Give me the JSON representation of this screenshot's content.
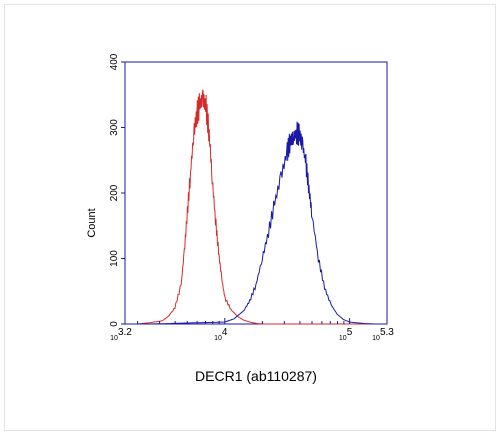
{
  "chart_data": {
    "type": "line",
    "title": "",
    "xlabel": "DECR1 (ab110287)",
    "ylabel": "Count",
    "x_scale": "log10",
    "xlim": [
      1585,
      199526
    ],
    "ylim": [
      0,
      400
    ],
    "grid": false,
    "y_ticks": [
      0,
      100,
      200,
      300,
      400
    ],
    "y_tick_labels": [
      "0",
      "100",
      "200",
      "300",
      "400"
    ],
    "x_tick_labels": [
      {
        "value": 1585,
        "base": "10",
        "exp": "3.2"
      },
      {
        "value": 10000,
        "base": "10",
        "exp": "4"
      },
      {
        "value": 100000,
        "base": "10",
        "exp": "5"
      },
      {
        "value": 199526,
        "base": "10",
        "exp": "5.3"
      }
    ],
    "colors": {
      "axis": "#1a1aa6",
      "series_0": "#d42a2a",
      "series_1": "#1a1aa6"
    },
    "series": [
      {
        "x": [
          1585,
          1995,
          2512,
          3162,
          3548,
          3981,
          4467,
          4732,
          5012,
          5309,
          5623,
          5957,
          6310,
          6683,
          7079,
          7499,
          7943,
          8414,
          8913,
          9441,
          10000,
          11220,
          12589,
          14125,
          15849,
          17783,
          19953,
          25119,
          31623,
          39811,
          50119,
          63096,
          79433,
          100000,
          125893,
          158489,
          199526
        ],
        "y": [
          0,
          0,
          2,
          5,
          12,
          25,
          60,
          110,
          170,
          230,
          290,
          320,
          335,
          345,
          330,
          290,
          220,
          160,
          110,
          70,
          40,
          22,
          12,
          6,
          3,
          1,
          0,
          0,
          0,
          0,
          0,
          0,
          0,
          0,
          0,
          0,
          0
        ]
      },
      {
        "x": [
          1585,
          2512,
          3981,
          6310,
          10000,
          11885,
          14125,
          15849,
          17783,
          19953,
          22387,
          25119,
          28184,
          31623,
          33497,
          35481,
          37584,
          39811,
          42170,
          44668,
          47315,
          50119,
          56234,
          63096,
          70795,
          79433,
          89125,
          100000,
          125893,
          158489,
          199526
        ],
        "y": [
          0,
          0,
          1,
          2,
          3,
          8,
          20,
          35,
          60,
          100,
          140,
          185,
          225,
          262,
          280,
          285,
          292,
          288,
          272,
          245,
          205,
          165,
          100,
          55,
          30,
          15,
          7,
          3,
          1,
          0,
          0
        ]
      }
    ]
  }
}
